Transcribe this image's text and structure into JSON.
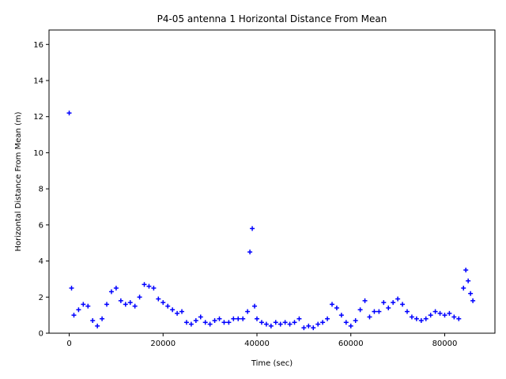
{
  "chart_data": {
    "type": "scatter",
    "title": "P4-05 antenna 1 Horizontal Distance From Mean",
    "xlabel": "Time (sec)",
    "ylabel": "Horizontal Distance From Mean (m)",
    "xlim": [
      -4300,
      90700
    ],
    "ylim": [
      0,
      16.8
    ],
    "xticks": [
      0,
      20000,
      40000,
      60000,
      80000
    ],
    "xtick_labels": [
      "0",
      "20000",
      "40000",
      "60000",
      "80000"
    ],
    "yticks": [
      0,
      2,
      4,
      6,
      8,
      10,
      12,
      14,
      16
    ],
    "ytick_labels": [
      "0",
      "2",
      "4",
      "6",
      "8",
      "10",
      "12",
      "14",
      "16"
    ],
    "grid": false,
    "series": [
      {
        "marker": "+",
        "color": "#0000ff",
        "x": [
          0,
          500,
          1000,
          2000,
          3000,
          4000,
          5000,
          6000,
          7000,
          8000,
          9000,
          10000,
          11000,
          12000,
          13000,
          14000,
          15000,
          16000,
          17000,
          18000,
          19000,
          20000,
          21000,
          22000,
          23000,
          24000,
          25000,
          26000,
          27000,
          28000,
          29000,
          30000,
          31000,
          32000,
          33000,
          34000,
          35000,
          36000,
          37000,
          38000,
          38500,
          39000,
          39500,
          40000,
          41000,
          42000,
          43000,
          44000,
          45000,
          46000,
          47000,
          48000,
          49000,
          50000,
          51000,
          52000,
          53000,
          54000,
          55000,
          56000,
          57000,
          58000,
          59000,
          60000,
          61000,
          62000,
          63000,
          64000,
          65000,
          66000,
          67000,
          68000,
          69000,
          70000,
          71000,
          72000,
          73000,
          74000,
          75000,
          76000,
          77000,
          78000,
          79000,
          80000,
          81000,
          82000,
          83000,
          84000,
          84500,
          85000,
          85500,
          86000
        ],
        "y": [
          12.2,
          2.5,
          1.0,
          1.3,
          1.6,
          1.5,
          0.7,
          0.4,
          0.8,
          1.6,
          2.3,
          2.5,
          1.8,
          1.6,
          1.7,
          1.5,
          2.0,
          2.7,
          2.6,
          2.5,
          1.9,
          1.7,
          1.5,
          1.3,
          1.1,
          1.2,
          0.6,
          0.5,
          0.7,
          0.9,
          0.6,
          0.5,
          0.7,
          0.8,
          0.6,
          0.6,
          0.8,
          0.8,
          0.8,
          1.2,
          4.5,
          5.8,
          1.5,
          0.8,
          0.6,
          0.5,
          0.4,
          0.6,
          0.5,
          0.6,
          0.5,
          0.6,
          0.8,
          0.3,
          0.4,
          0.3,
          0.5,
          0.6,
          0.8,
          1.6,
          1.4,
          1.0,
          0.6,
          0.4,
          0.7,
          1.3,
          1.8,
          0.9,
          1.2,
          1.2,
          1.7,
          1.4,
          1.7,
          1.9,
          1.6,
          1.2,
          0.9,
          0.8,
          0.7,
          0.8,
          1.0,
          1.2,
          1.1,
          1.0,
          1.1,
          0.9,
          0.8,
          2.5,
          3.5,
          2.9,
          2.2,
          1.8
        ]
      },
      {
        "marker": "line",
        "color": "#00bb00",
        "x": [
          0,
          86000
        ],
        "y": [
          0,
          0
        ]
      }
    ]
  }
}
